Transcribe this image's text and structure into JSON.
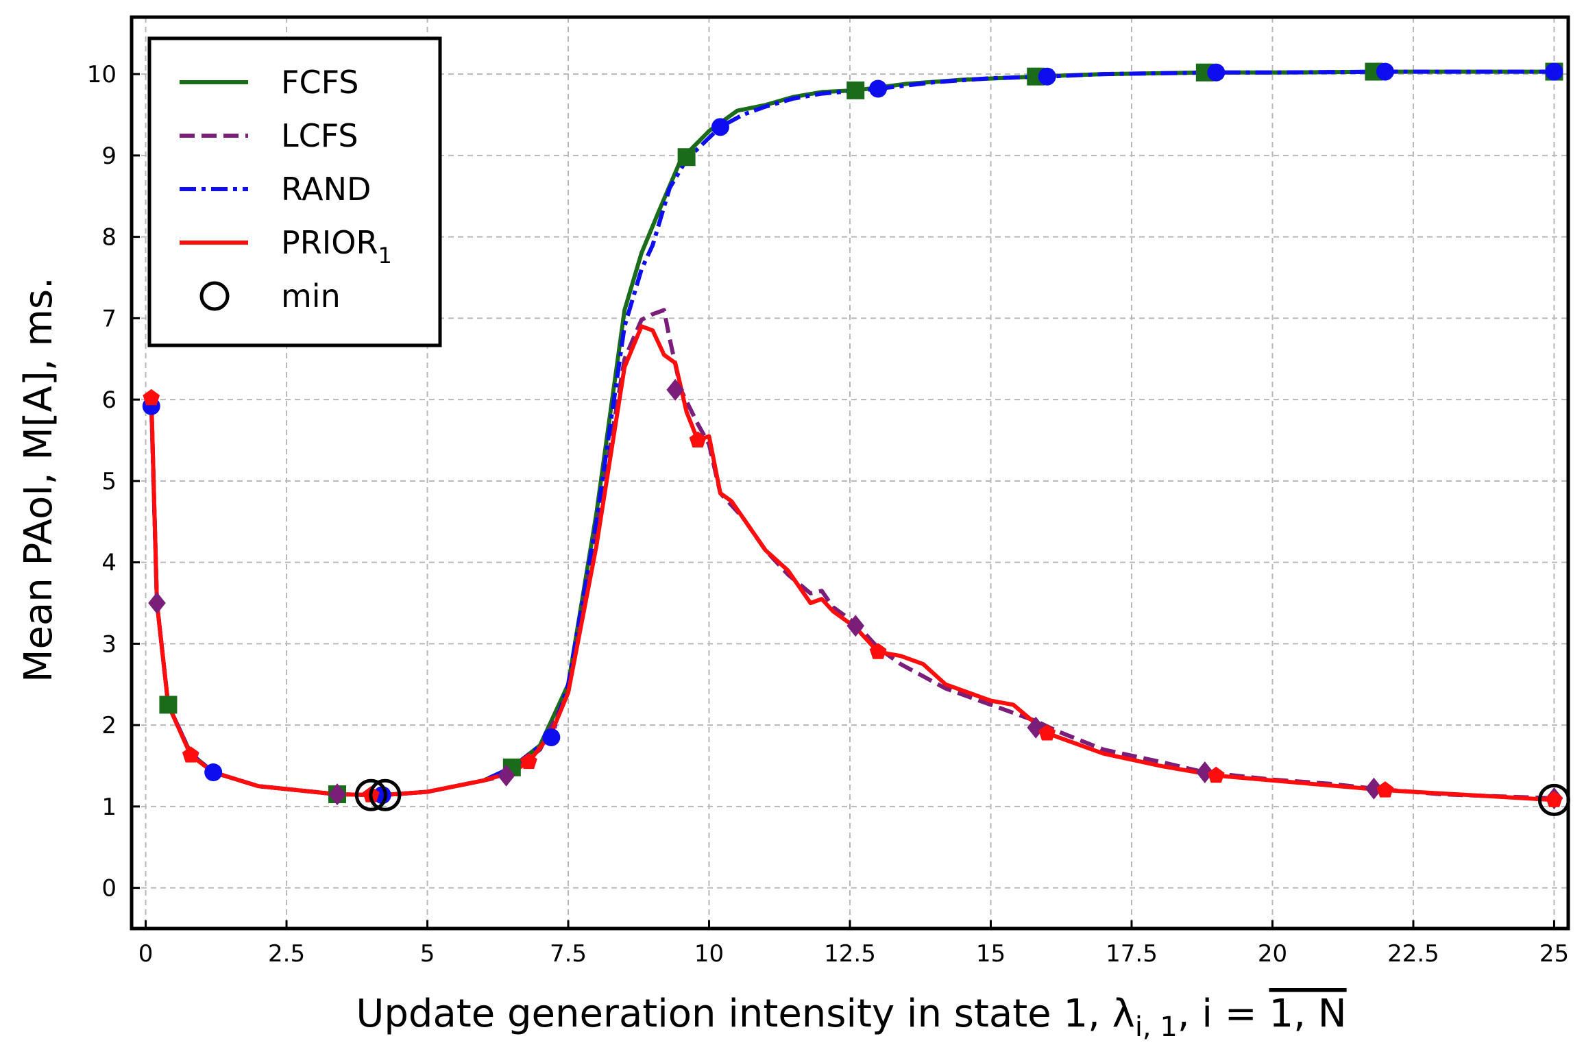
{
  "chart_data": {
    "type": "line",
    "xlabel": "Update generation intensity in state 1, λ",
    "xlabel_sub": "i, 1",
    "xlabel_tail": ", i = ",
    "xlabel_over": "1, N",
    "ylabel": "Mean PAoI, M[A], ms.",
    "xlim": [
      -0.25,
      25.25
    ],
    "ylim": [
      -0.5,
      10.7
    ],
    "xticks": [
      0,
      2.5,
      5,
      7.5,
      10,
      12.5,
      15,
      17.5,
      20,
      22.5,
      25
    ],
    "xtick_labels": [
      "0",
      "2.5",
      "5",
      "7.5",
      "10",
      "12.5",
      "15",
      "17.5",
      "20",
      "22.5",
      "25"
    ],
    "yticks": [
      0,
      1,
      2,
      3,
      4,
      5,
      6,
      7,
      8,
      9,
      10
    ],
    "ytick_labels": [
      "0",
      "1",
      "2",
      "3",
      "4",
      "5",
      "6",
      "7",
      "8",
      "9",
      "10"
    ],
    "grid": true,
    "legend_position": "top-left",
    "legend": {
      "fcfs": "FCFS",
      "lcfs": "LCFS",
      "rand": "RAND",
      "prior": "PRIOR",
      "prior_sub": "1",
      "min": "min"
    },
    "series": [
      {
        "name": "FCFS",
        "color": "#1a6b1a",
        "style": "solid",
        "marker": "square",
        "x": [
          0.1,
          0.2,
          0.4,
          0.8,
          1.2,
          2.0,
          3.4,
          4.2,
          5.0,
          6.0,
          6.5,
          7.0,
          7.5,
          8.0,
          8.5,
          8.8,
          9.1,
          9.5,
          10.0,
          10.5,
          11.0,
          11.5,
          12.0,
          12.6,
          13.5,
          14.5,
          15.8,
          17.0,
          18.8,
          20.0,
          22.0,
          25.0
        ],
        "y": [
          6.0,
          3.5,
          2.25,
          1.65,
          1.42,
          1.25,
          1.15,
          1.14,
          1.18,
          1.32,
          1.48,
          1.75,
          2.5,
          4.6,
          7.1,
          7.8,
          8.3,
          8.95,
          9.3,
          9.55,
          9.62,
          9.72,
          9.78,
          9.8,
          9.88,
          9.93,
          9.97,
          10.0,
          10.02,
          10.02,
          10.03,
          10.03
        ],
        "marker_x": [
          0.4,
          3.4,
          6.5,
          9.6,
          12.6,
          15.8,
          18.8,
          21.8,
          25.0
        ],
        "marker_y": [
          2.25,
          1.15,
          1.48,
          8.98,
          9.8,
          9.97,
          10.02,
          10.03,
          10.03
        ]
      },
      {
        "name": "LCFS",
        "color": "#7a1e7a",
        "style": "dashed",
        "marker": "diamond",
        "x": [
          0.1,
          0.2,
          0.4,
          0.8,
          1.2,
          2.0,
          3.4,
          4.2,
          5.0,
          6.0,
          6.4,
          7.0,
          7.5,
          8.0,
          8.5,
          8.8,
          9.0,
          9.2,
          9.3,
          9.5,
          9.8,
          10.0,
          10.2,
          10.6,
          11.0,
          11.4,
          11.8,
          12.0,
          12.2,
          12.6,
          13.0,
          13.4,
          13.8,
          14.2,
          14.6,
          15.0,
          15.4,
          15.8,
          16.2,
          17.0,
          18.0,
          18.8,
          20.0,
          21.0,
          21.8,
          23.0,
          25.0
        ],
        "y": [
          6.0,
          3.5,
          2.25,
          1.65,
          1.42,
          1.25,
          1.15,
          1.14,
          1.18,
          1.32,
          1.38,
          1.7,
          2.4,
          4.4,
          6.5,
          6.98,
          7.05,
          7.1,
          6.75,
          6.12,
          5.7,
          5.45,
          4.85,
          4.55,
          4.15,
          3.85,
          3.62,
          3.65,
          3.45,
          3.25,
          2.95,
          2.75,
          2.6,
          2.45,
          2.35,
          2.25,
          2.15,
          2.05,
          1.92,
          1.7,
          1.55,
          1.42,
          1.33,
          1.28,
          1.22,
          1.15,
          1.1
        ],
        "marker_x": [
          0.2,
          3.4,
          6.4,
          9.4,
          12.6,
          15.8,
          18.8,
          21.8,
          25.0
        ],
        "marker_y": [
          3.5,
          1.15,
          1.38,
          6.12,
          3.22,
          1.97,
          1.42,
          1.22,
          1.1
        ]
      },
      {
        "name": "RAND",
        "color": "#0d0df0",
        "style": "dashdot",
        "marker": "circle",
        "x": [
          0.1,
          0.2,
          0.4,
          0.8,
          1.2,
          2.0,
          3.4,
          4.2,
          5.0,
          6.0,
          6.5,
          7.2,
          7.5,
          8.0,
          8.5,
          8.8,
          9.0,
          9.3,
          9.6,
          10.2,
          10.6,
          11.0,
          11.5,
          12.0,
          13.0,
          14.0,
          15.0,
          16.0,
          17.0,
          19.0,
          20.0,
          22.0,
          25.0
        ],
        "y": [
          5.92,
          3.5,
          2.25,
          1.65,
          1.42,
          1.25,
          1.15,
          1.14,
          1.18,
          1.32,
          1.48,
          1.85,
          2.5,
          4.5,
          6.9,
          7.6,
          7.9,
          8.6,
          8.95,
          9.35,
          9.5,
          9.6,
          9.7,
          9.76,
          9.82,
          9.9,
          9.95,
          9.97,
          10.0,
          10.02,
          10.02,
          10.03,
          10.03
        ],
        "marker_x": [
          0.1,
          1.2,
          4.2,
          7.2,
          10.2,
          13.0,
          16.0,
          19.0,
          22.0,
          25.0
        ],
        "marker_y": [
          5.92,
          1.42,
          1.14,
          1.85,
          9.35,
          9.82,
          9.97,
          10.02,
          10.03,
          10.03
        ]
      },
      {
        "name": "PRIOR1",
        "color": "#ff0d0d",
        "style": "solid",
        "marker": "pentagon",
        "x": [
          0.1,
          0.2,
          0.4,
          0.8,
          1.2,
          2.0,
          3.4,
          4.2,
          5.0,
          6.0,
          6.5,
          6.8,
          7.2,
          7.5,
          8.0,
          8.5,
          8.8,
          9.0,
          9.2,
          9.4,
          9.6,
          9.8,
          10.0,
          10.2,
          10.4,
          10.6,
          11.0,
          11.4,
          11.8,
          12.0,
          12.2,
          12.6,
          13.0,
          13.4,
          13.8,
          14.2,
          14.6,
          15.0,
          15.4,
          16.0,
          17.0,
          18.0,
          19.0,
          20.0,
          21.0,
          22.0,
          23.0,
          24.0,
          25.0
        ],
        "y": [
          6.02,
          3.5,
          2.25,
          1.63,
          1.42,
          1.25,
          1.15,
          1.14,
          1.18,
          1.32,
          1.42,
          1.55,
          1.9,
          2.4,
          4.2,
          6.4,
          6.9,
          6.85,
          6.55,
          6.45,
          5.85,
          5.5,
          5.55,
          4.85,
          4.75,
          4.55,
          4.15,
          3.9,
          3.5,
          3.55,
          3.4,
          3.2,
          2.9,
          2.85,
          2.75,
          2.5,
          2.4,
          2.3,
          2.25,
          1.9,
          1.65,
          1.5,
          1.38,
          1.32,
          1.26,
          1.2,
          1.16,
          1.12,
          1.08
        ],
        "marker_x": [
          0.1,
          0.8,
          4.0,
          6.8,
          9.8,
          13.0,
          16.0,
          19.0,
          22.0,
          25.0
        ],
        "marker_y": [
          6.02,
          1.63,
          1.14,
          1.55,
          5.5,
          2.9,
          1.9,
          1.38,
          1.2,
          1.08
        ]
      }
    ],
    "min_points": [
      {
        "x": 4.0,
        "y": 1.14
      },
      {
        "x": 4.25,
        "y": 1.14
      },
      {
        "x": 25.0,
        "y": 1.08
      }
    ]
  }
}
